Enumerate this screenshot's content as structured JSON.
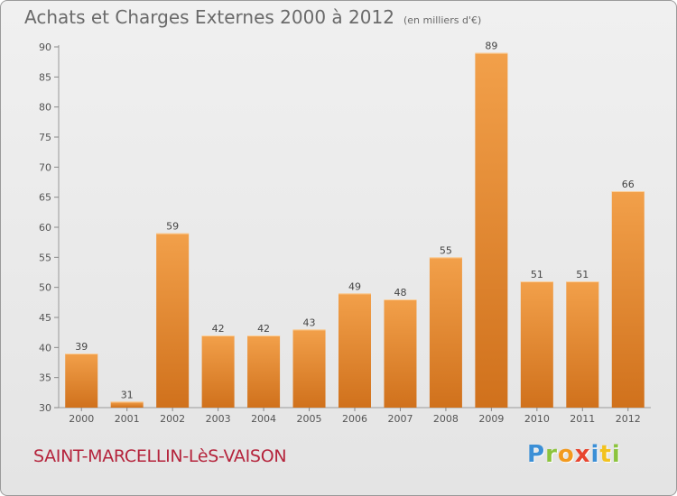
{
  "chart_data": {
    "type": "bar",
    "title": "Achats et Charges Externes 2000 à 2012",
    "unit": "(en milliers d'€)",
    "categories": [
      "2000",
      "2001",
      "2002",
      "2003",
      "2004",
      "2005",
      "2006",
      "2007",
      "2008",
      "2009",
      "2010",
      "2011",
      "2012"
    ],
    "values": [
      39,
      31,
      59,
      42,
      42,
      43,
      49,
      48,
      55,
      89,
      51,
      51,
      66
    ],
    "ylim": [
      30,
      90
    ],
    "yticks": [
      30,
      35,
      40,
      45,
      50,
      55,
      60,
      65,
      70,
      75,
      80,
      85,
      90
    ],
    "grid": false,
    "bar_color": "#f2a04a",
    "bar_color_dark": "#d0711c"
  },
  "footer": {
    "town": "SAINT-MARCELLIN-LèS-VAISON",
    "logo_letters": [
      "P",
      "r",
      "o",
      "x",
      "i",
      "t",
      "i"
    ],
    "logo_colors": [
      "#3b8fd6",
      "#8cc43d",
      "#f29a1f",
      "#e8442e",
      "#3b8fd6",
      "#f2c21f",
      "#8cc43d"
    ]
  }
}
